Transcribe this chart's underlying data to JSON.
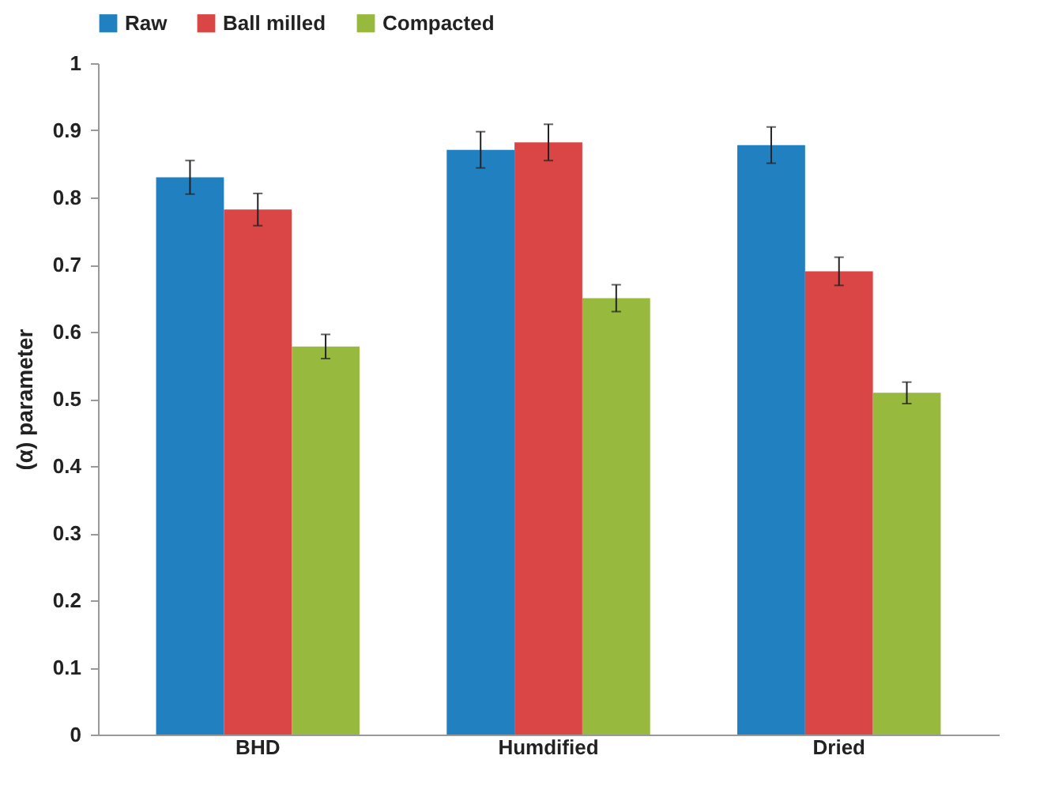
{
  "chart_data": {
    "type": "bar",
    "ylabel": "(α) parameter",
    "categories": [
      "BHD",
      "Humdified",
      "Dried"
    ],
    "series": [
      {
        "name": "Raw",
        "color": "#2180c0",
        "values": [
          0.83,
          0.871,
          0.878
        ],
        "errors": [
          0.025,
          0.027,
          0.027
        ]
      },
      {
        "name": "Ball milled",
        "color": "#da4545",
        "values": [
          0.782,
          0.882,
          0.69
        ],
        "errors": [
          0.024,
          0.027,
          0.021
        ]
      },
      {
        "name": "Compacted",
        "color": "#97b93d",
        "values": [
          0.578,
          0.65,
          0.509
        ],
        "errors": [
          0.018,
          0.02,
          0.016
        ]
      }
    ],
    "ylim": [
      0,
      1
    ],
    "yticks": [
      0,
      0.1,
      0.2,
      0.3,
      0.4,
      0.5,
      0.6,
      0.7,
      0.8,
      0.9,
      1
    ],
    "grid": false,
    "legend": "top"
  }
}
